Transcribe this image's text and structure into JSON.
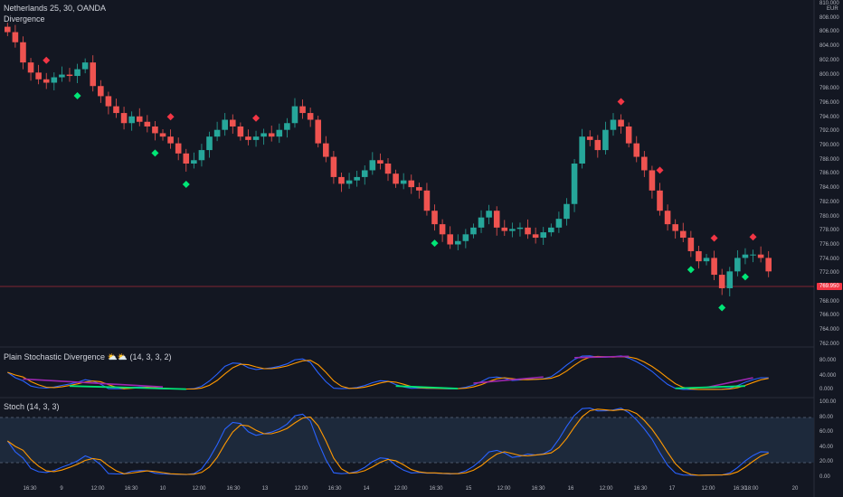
{
  "header": {
    "symbol_line": "Netherlands 25, 30, OANDA",
    "indicator_name": "Divergence",
    "currency": "EUR"
  },
  "price_axis": {
    "labels": [
      "810.000",
      "808.000",
      "806.000",
      "804.000",
      "802.000",
      "800.000",
      "798.000",
      "796.000",
      "794.000",
      "792.000",
      "790.000",
      "788.000",
      "786.000",
      "784.000",
      "782.000",
      "780.000",
      "778.000",
      "776.000",
      "774.000",
      "772.000",
      "770.000",
      "768.000",
      "766.000",
      "764.000",
      "762.000"
    ],
    "current_price": "769.950"
  },
  "stoch_div_pane": {
    "title": "Plain Stochastic Divergence ⛅⛅ (14, 3, 3, 2)",
    "axis_labels": [
      "80.000",
      "40.000",
      "0.000"
    ]
  },
  "stoch_pane": {
    "title": "Stoch (14, 3, 3)",
    "axis_labels": [
      "100.00",
      "80.00",
      "60.00",
      "40.00",
      "20.00",
      "0.00"
    ]
  },
  "time_axis": {
    "labels": [
      "16:30",
      "9",
      "12:00",
      "16:30",
      "10",
      "12:00",
      "16:30",
      "13",
      "12:00",
      "16:30",
      "14",
      "12:00",
      "16:30",
      "15",
      "12:00",
      "16:30",
      "16",
      "12:00",
      "16:30",
      "17",
      "12:00",
      "16:30",
      "18:00",
      "20"
    ]
  },
  "chart_data": {
    "type": "candlestick",
    "symbol": "Netherlands 25",
    "interval": "30",
    "closes": [
      805.5,
      804,
      801,
      799.5,
      798.5,
      798,
      798.8,
      799.2,
      799,
      800,
      801,
      797.5,
      796,
      794.5,
      793.5,
      792,
      793,
      792.2,
      791.5,
      790.5,
      790,
      789,
      787.5,
      786,
      786.5,
      788,
      790,
      791,
      792.5,
      791.5,
      790,
      789.5,
      790,
      790.5,
      790,
      791,
      792,
      794.5,
      793.5,
      792.5,
      789,
      787,
      784,
      783,
      783.5,
      784,
      785,
      786.5,
      786,
      784.5,
      783,
      783.5,
      782.5,
      782,
      779,
      777,
      775.5,
      774,
      774.5,
      775.5,
      776.5,
      778,
      779,
      776.5,
      776,
      776.3,
      776.5,
      775.5,
      775,
      775.8,
      776.5,
      777.8,
      780,
      786,
      790,
      789.5,
      788,
      791,
      792.5,
      791.5,
      789,
      787,
      785,
      782,
      779,
      777,
      776,
      775,
      773,
      771.5,
      772,
      769.5,
      767.5,
      770,
      772,
      772.5,
      772.5,
      772,
      770
    ],
    "price_ylim": [
      762,
      810
    ],
    "stoch_ylim": [
      0,
      100
    ],
    "stoch_levels": [
      80,
      20
    ],
    "sell_markers": [
      5,
      21,
      32,
      79,
      84,
      91,
      96
    ],
    "buy_markers": [
      9,
      19,
      23,
      55,
      88,
      92,
      95
    ],
    "annotation_values": [
      "Plain Stochastic Divergence"
    ]
  }
}
